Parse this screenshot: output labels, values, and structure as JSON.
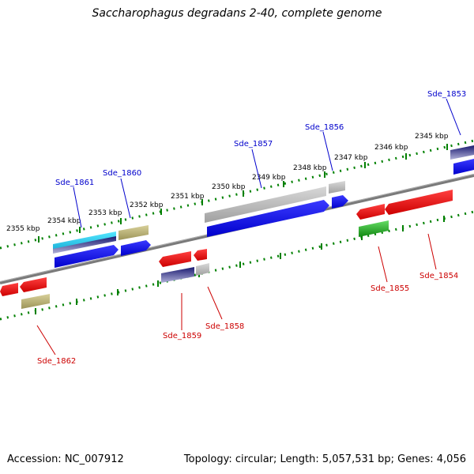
{
  "title": "Saccharophagus degradans 2-40, complete genome",
  "footer": {
    "accession": "Accession: NC_007912",
    "genome_info": "Topology: circular; Length: 5,057,531 bp; Genes: 4,056"
  },
  "axis": {
    "ticks": [
      "2355 kbp",
      "2354 kbp",
      "2353 kbp",
      "2352 kbp",
      "2351 kbp",
      "2350 kbp",
      "2349 kbp",
      "2348 kbp",
      "2347 kbp",
      "2346 kbp",
      "2345 kbp"
    ]
  },
  "genes": {
    "top": [
      "Sde_1861",
      "Sde_1860",
      "Sde_1857",
      "Sde_1856",
      "Sde_1853"
    ],
    "bottom": [
      "Sde_1862",
      "Sde_1859",
      "Sde_1858",
      "Sde_1855",
      "Sde_1854"
    ]
  },
  "colors": {
    "top_label": "#0000cc",
    "bottom_label": "#cc0000",
    "backbone": "#808080",
    "tick": "#008000",
    "blue": "#0000ee",
    "red": "#ee0000",
    "gray": "#b0b0b0",
    "khaki": "#b8b070",
    "navy": "#1a1a70",
    "cyan": "#22ccee",
    "green": "#22bb22"
  }
}
